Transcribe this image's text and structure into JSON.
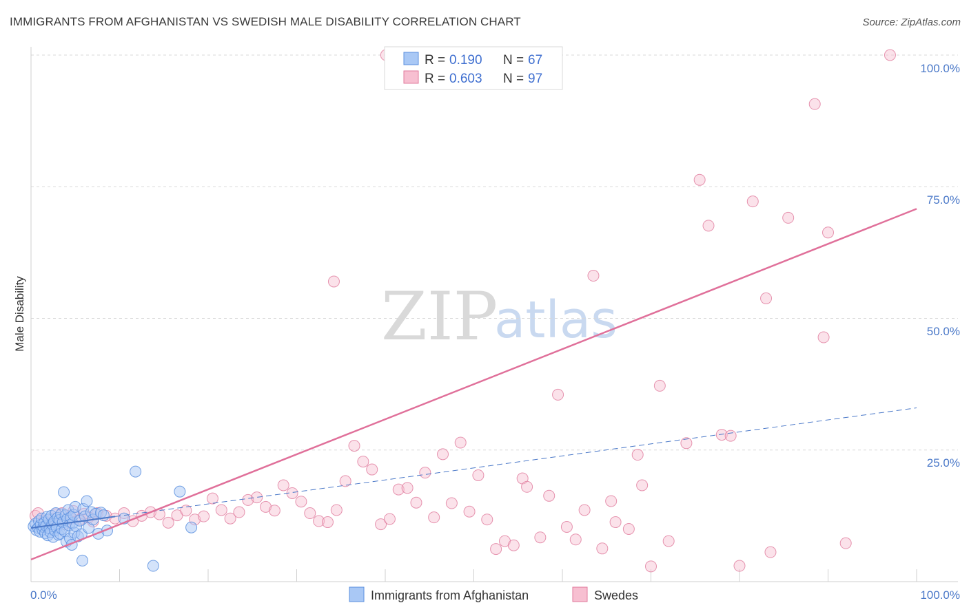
{
  "header": {
    "title": "IMMIGRANTS FROM AFGHANISTAN VS SWEDISH MALE DISABILITY CORRELATION CHART",
    "source": "Source: ZipAtlas.com"
  },
  "watermark": {
    "zip": "ZIP",
    "atlas": "atlas"
  },
  "colors": {
    "blue_fill": "#a9c8f5",
    "blue_stroke": "#5b8fde",
    "blue_line": "#4a78c8",
    "pink_fill": "#f7bfd1",
    "pink_stroke": "#e07a9c",
    "pink_line": "#e0709a",
    "grid": "#d8d8d8",
    "tick_text": "#4a78c8"
  },
  "legend": {
    "r_label": "R =",
    "n_label": "N =",
    "entries": [
      {
        "r": "0.190",
        "n": "67"
      },
      {
        "r": "0.603",
        "n": "97"
      }
    ]
  },
  "chart_data": {
    "type": "scatter",
    "title": "IMMIGRANTS FROM AFGHANISTAN VS SWEDISH MALE DISABILITY CORRELATION CHART",
    "xlabel": "",
    "ylabel": "Male Disability",
    "xlim": [
      0,
      100
    ],
    "ylim": [
      0,
      100
    ],
    "x_tick_labels": [
      "0.0%",
      "100.0%"
    ],
    "y_tick_labels": [
      "25.0%",
      "50.0%",
      "75.0%",
      "100.0%"
    ],
    "y_ticks": [
      25,
      50,
      75,
      100
    ],
    "grid": true,
    "legend_position": "top-center",
    "series": [
      {
        "name": "Immigrants from Afghanistan",
        "color": "#a9c8f5",
        "trend": {
          "x": [
            0,
            100
          ],
          "y": [
            10.2,
            33.0
          ],
          "style": "dashed",
          "solid_until_x": 9.5
        },
        "points": [
          [
            0.3,
            10.5
          ],
          [
            0.5,
            11.0
          ],
          [
            0.6,
            9.8
          ],
          [
            0.8,
            10.2
          ],
          [
            0.9,
            11.5
          ],
          [
            1.0,
            9.5
          ],
          [
            1.1,
            10.8
          ],
          [
            1.2,
            12.0
          ],
          [
            1.3,
            9.9
          ],
          [
            1.4,
            10.4
          ],
          [
            1.5,
            11.2
          ],
          [
            1.6,
            9.2
          ],
          [
            1.7,
            10.6
          ],
          [
            1.8,
            12.3
          ],
          [
            1.9,
            8.8
          ],
          [
            2.0,
            11.8
          ],
          [
            2.1,
            10.1
          ],
          [
            2.2,
            9.4
          ],
          [
            2.3,
            12.5
          ],
          [
            2.4,
            10.9
          ],
          [
            2.5,
            8.5
          ],
          [
            2.6,
            11.4
          ],
          [
            2.7,
            9.7
          ],
          [
            2.8,
            13.0
          ],
          [
            2.9,
            10.3
          ],
          [
            3.0,
            12.1
          ],
          [
            3.1,
            8.9
          ],
          [
            3.2,
            11.7
          ],
          [
            3.3,
            9.1
          ],
          [
            3.4,
            12.8
          ],
          [
            3.5,
            10.0
          ],
          [
            3.6,
            11.3
          ],
          [
            3.7,
            17.0
          ],
          [
            3.8,
            9.6
          ],
          [
            3.9,
            12.6
          ],
          [
            4.0,
            7.6
          ],
          [
            4.1,
            11.9
          ],
          [
            4.2,
            13.6
          ],
          [
            4.3,
            10.7
          ],
          [
            4.4,
            8.2
          ],
          [
            4.5,
            12.2
          ],
          [
            4.6,
            7.0
          ],
          [
            4.7,
            11.1
          ],
          [
            4.8,
            12.7
          ],
          [
            4.9,
            9.3
          ],
          [
            5.0,
            14.2
          ],
          [
            5.1,
            10.5
          ],
          [
            5.3,
            8.6
          ],
          [
            5.5,
            11.6
          ],
          [
            5.7,
            9.0
          ],
          [
            5.9,
            13.8
          ],
          [
            6.1,
            12.4
          ],
          [
            6.3,
            15.3
          ],
          [
            6.5,
            10.2
          ],
          [
            6.8,
            13.2
          ],
          [
            7.0,
            11.8
          ],
          [
            7.3,
            12.9
          ],
          [
            7.6,
            9.1
          ],
          [
            7.9,
            13.1
          ],
          [
            8.2,
            12.6
          ],
          [
            8.6,
            9.7
          ],
          [
            5.8,
            4.0
          ],
          [
            10.5,
            12.0
          ],
          [
            11.8,
            20.9
          ],
          [
            13.8,
            3.0
          ],
          [
            16.8,
            17.1
          ],
          [
            18.1,
            10.3
          ]
        ]
      },
      {
        "name": "Swedes",
        "color": "#f7bfd1",
        "trend": {
          "x": [
            0,
            100
          ],
          "y": [
            4.2,
            70.8
          ],
          "style": "solid"
        },
        "points": [
          [
            0.5,
            12.5
          ],
          [
            1.5,
            11.5
          ],
          [
            2.5,
            12.0
          ],
          [
            3.5,
            13.0
          ],
          [
            4.5,
            12.0
          ],
          [
            5.5,
            11.8
          ],
          [
            6.5,
            12.2
          ],
          [
            7.5,
            13.0
          ],
          [
            8.5,
            12.5
          ],
          [
            9.5,
            12.0
          ],
          [
            10.5,
            13.0
          ],
          [
            11.5,
            11.5
          ],
          [
            12.5,
            12.5
          ],
          [
            13.5,
            13.2
          ],
          [
            14.5,
            12.8
          ],
          [
            15.5,
            11.2
          ],
          [
            16.5,
            12.6
          ],
          [
            17.5,
            13.5
          ],
          [
            18.5,
            11.8
          ],
          [
            19.5,
            12.4
          ],
          [
            20.5,
            15.8
          ],
          [
            21.5,
            13.6
          ],
          [
            22.5,
            12.0
          ],
          [
            23.5,
            13.2
          ],
          [
            24.5,
            15.5
          ],
          [
            25.5,
            16.0
          ],
          [
            26.5,
            14.2
          ],
          [
            27.5,
            13.5
          ],
          [
            28.5,
            18.3
          ],
          [
            29.5,
            16.8
          ],
          [
            30.5,
            15.2
          ],
          [
            31.5,
            13.0
          ],
          [
            32.5,
            11.5
          ],
          [
            33.5,
            11.3
          ],
          [
            34.5,
            13.6
          ],
          [
            35.5,
            19.1
          ],
          [
            36.5,
            25.8
          ],
          [
            37.5,
            22.8
          ],
          [
            38.5,
            21.3
          ],
          [
            39.5,
            10.9
          ],
          [
            40.5,
            11.9
          ],
          [
            41.5,
            17.5
          ],
          [
            42.5,
            17.8
          ],
          [
            43.5,
            15.0
          ],
          [
            44.5,
            20.7
          ],
          [
            45.5,
            12.2
          ],
          [
            46.5,
            24.2
          ],
          [
            47.5,
            14.9
          ],
          [
            48.5,
            26.4
          ],
          [
            49.5,
            13.3
          ],
          [
            50.5,
            20.2
          ],
          [
            51.5,
            11.8
          ],
          [
            52.5,
            6.2
          ],
          [
            53.5,
            7.7
          ],
          [
            54.5,
            6.9
          ],
          [
            55.5,
            19.6
          ],
          [
            56.0,
            18.0
          ],
          [
            57.5,
            8.4
          ],
          [
            58.5,
            16.3
          ],
          [
            59.5,
            35.5
          ],
          [
            60.5,
            10.4
          ],
          [
            61.5,
            8.0
          ],
          [
            62.5,
            13.6
          ],
          [
            63.5,
            58.1
          ],
          [
            64.5,
            6.3
          ],
          [
            65.5,
            15.3
          ],
          [
            66.0,
            11.3
          ],
          [
            67.5,
            10.0
          ],
          [
            68.5,
            24.1
          ],
          [
            69.0,
            18.3
          ],
          [
            70.0,
            2.9
          ],
          [
            71.0,
            37.2
          ],
          [
            72.0,
            7.7
          ],
          [
            74.0,
            26.3
          ],
          [
            75.5,
            76.3
          ],
          [
            76.5,
            67.6
          ],
          [
            78.0,
            27.9
          ],
          [
            79.0,
            27.7
          ],
          [
            80.0,
            3.0
          ],
          [
            81.5,
            72.2
          ],
          [
            83.0,
            53.8
          ],
          [
            83.5,
            5.6
          ],
          [
            85.5,
            69.1
          ],
          [
            88.5,
            90.7
          ],
          [
            89.5,
            46.4
          ],
          [
            90.0,
            66.3
          ],
          [
            92.0,
            7.3
          ],
          [
            97.0,
            100.0
          ],
          [
            40.1,
            100.0
          ],
          [
            44.0,
            100.0
          ],
          [
            34.2,
            57.0
          ],
          [
            0.8,
            13.0
          ],
          [
            1.8,
            11.0
          ],
          [
            2.8,
            12.8
          ],
          [
            3.8,
            10.9
          ],
          [
            4.8,
            13.4
          ],
          [
            6.0,
            12.9
          ],
          [
            7.0,
            11.4
          ]
        ]
      }
    ]
  },
  "bottom_legend": {
    "items": [
      "Immigrants from Afghanistan",
      "Swedes"
    ]
  }
}
